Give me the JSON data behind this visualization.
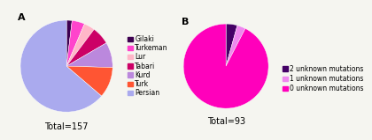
{
  "chart_A": {
    "labels": [
      "Gilaki",
      "Turkeman",
      "Lur",
      "Tabari",
      "Kurd",
      "Turk",
      "Persian"
    ],
    "values": [
      3,
      7,
      6,
      10,
      14,
      17,
      100
    ],
    "colors": [
      "#3d0050",
      "#ff44cc",
      "#ffb6c8",
      "#cc0066",
      "#bb88dd",
      "#ff5533",
      "#aaaaee"
    ],
    "total": "Total=157"
  },
  "chart_B": {
    "labels": [
      "2 unknown mutations",
      "1 unknown mutations",
      "0 unknown mutations"
    ],
    "values": [
      4,
      3,
      86
    ],
    "colors": [
      "#440066",
      "#ee88ee",
      "#ff00bb"
    ],
    "total": "Total=93"
  },
  "label_A": "A",
  "label_B": "B",
  "background_color": "#f5f5f0",
  "fontsize_legend": 5.5,
  "fontsize_label": 8,
  "fontsize_total": 7
}
